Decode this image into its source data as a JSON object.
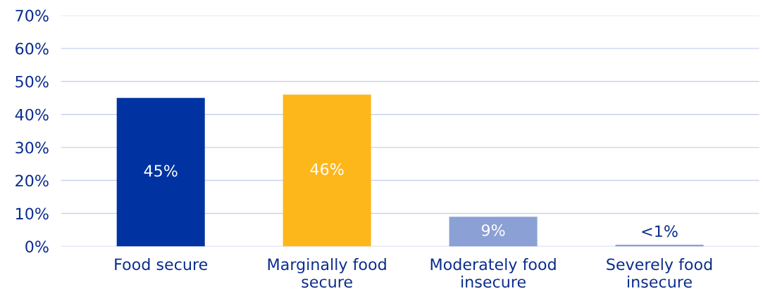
{
  "chart_data": {
    "type": "bar",
    "categories": [
      "Food secure",
      "Marginally food\nsecure",
      "Moderately food\ninsecure",
      "Severely food\ninsecure"
    ],
    "values": [
      45,
      46,
      9,
      0.5
    ],
    "colors": [
      "#0033a1",
      "#fdb71a",
      "#8ba0d4",
      "#8ba0d4"
    ],
    "value_labels": [
      "45%",
      "46%",
      "9%",
      "<1%"
    ],
    "ylim": [
      0,
      70
    ],
    "yticks": [
      {
        "value": 0,
        "label": "0%"
      },
      {
        "value": 10,
        "label": "10%"
      },
      {
        "value": 20,
        "label": "20%"
      },
      {
        "value": 30,
        "label": "30%"
      },
      {
        "value": 40,
        "label": "40%"
      },
      {
        "value": 50,
        "label": "50%"
      },
      {
        "value": 60,
        "label": "60%"
      },
      {
        "value": 70,
        "label": "70%"
      }
    ],
    "grid": "y",
    "legend": false
  }
}
